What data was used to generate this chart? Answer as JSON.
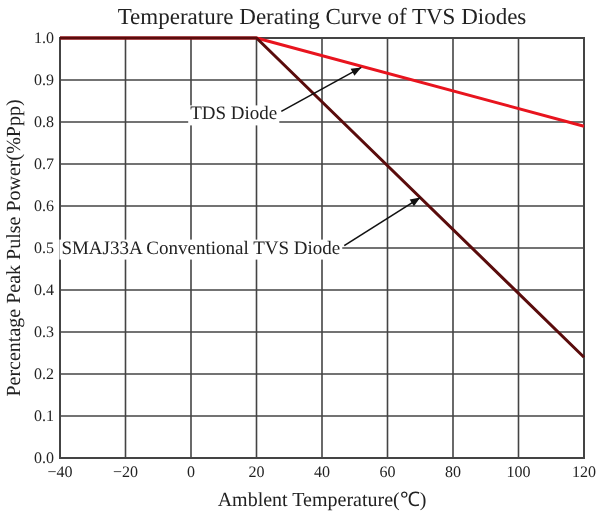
{
  "chart_data": {
    "type": "line",
    "title": "Temperature Derating Curve of TVS Diodes",
    "xlabel": "Amblent Temperature(℃)",
    "ylabel": "Percentage Peak Pulse Power(%Ppp)",
    "x": [
      -40,
      20,
      120
    ],
    "series": [
      {
        "color": "#e8141e",
        "values": [
          1,
          1,
          0.79
        ]
      },
      {
        "color": "#5a0c0c",
        "values": [
          1,
          1,
          0.24
        ]
      }
    ],
    "xlim": [
      -40,
      120
    ],
    "xticks": [
      -40,
      -20,
      0,
      20,
      40,
      60,
      80,
      100,
      120
    ],
    "ylim": [
      0,
      1
    ],
    "yticks": [
      {
        "value": 0,
        "label": "0.0"
      },
      {
        "value": 0.1,
        "label": "0.1"
      },
      {
        "value": 0.2,
        "label": "0.2"
      },
      {
        "value": 0.3,
        "label": "0.3"
      },
      {
        "value": 0.4,
        "label": "0.4"
      },
      {
        "value": 0.5,
        "label": "0.5"
      },
      {
        "value": 0.6,
        "label": "0.6"
      },
      {
        "value": 0.7,
        "label": "0.7"
      },
      {
        "value": 0.8,
        "label": "0.8"
      },
      {
        "value": 0.9,
        "label": "0.9"
      },
      {
        "value": 1,
        "label": "1.0"
      }
    ],
    "grid": true,
    "marker": "none",
    "line_style": "solid",
    "annotations": [
      {
        "text": "TDS Diode",
        "x": 52,
        "y": 0.93
      },
      {
        "text": "SMAJ33A Conventional TVS Diode",
        "x": 70,
        "y": 0.62
      }
    ]
  }
}
